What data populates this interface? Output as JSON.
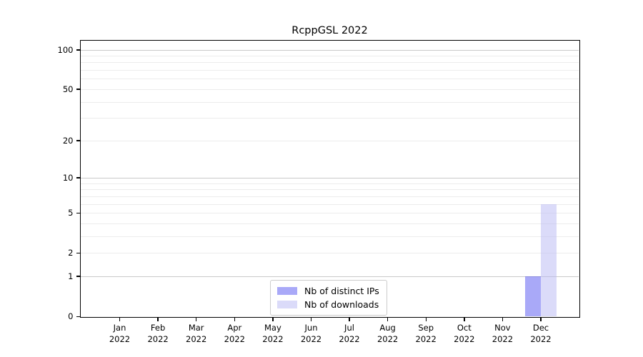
{
  "chart_data": {
    "type": "bar",
    "title": "RcppGSL 2022",
    "categories": [
      "Jan 2022",
      "Feb 2022",
      "Mar 2022",
      "Apr 2022",
      "May 2022",
      "Jun 2022",
      "Jul 2022",
      "Aug 2022",
      "Sep 2022",
      "Oct 2022",
      "Nov 2022",
      "Dec 2022"
    ],
    "series": [
      {
        "name": "Nb of distinct IPs",
        "color": "rgba(83,83,241,0.5)",
        "solid_color": "#a9a9f8",
        "values": [
          0,
          0,
          0,
          0,
          0,
          0,
          0,
          0,
          0,
          0,
          0,
          1
        ]
      },
      {
        "name": "Nb of downloads",
        "color": "rgba(183,183,243,0.5)",
        "solid_color": "#dbdbf9",
        "values": [
          0,
          0,
          0,
          0,
          0,
          0,
          0,
          0,
          0,
          0,
          0,
          6
        ]
      }
    ],
    "xlabel": "",
    "ylabel": "",
    "yscale": "log1p",
    "ylim": [
      0,
      115
    ],
    "yticks": [
      0,
      1,
      2,
      5,
      10,
      20,
      50,
      100
    ],
    "major_gridlines": [
      1,
      10,
      100
    ],
    "minor_gridlines": [
      2,
      3,
      4,
      5,
      6,
      7,
      8,
      9,
      20,
      30,
      40,
      50,
      60,
      70,
      80,
      90
    ],
    "grid": true,
    "legend_position": "bottom-center",
    "colors": {
      "major_grid": "#c9c9c9",
      "minor_grid": "#ececec",
      "spine": "#000000",
      "text": "#000000",
      "background": "#ffffff"
    }
  }
}
